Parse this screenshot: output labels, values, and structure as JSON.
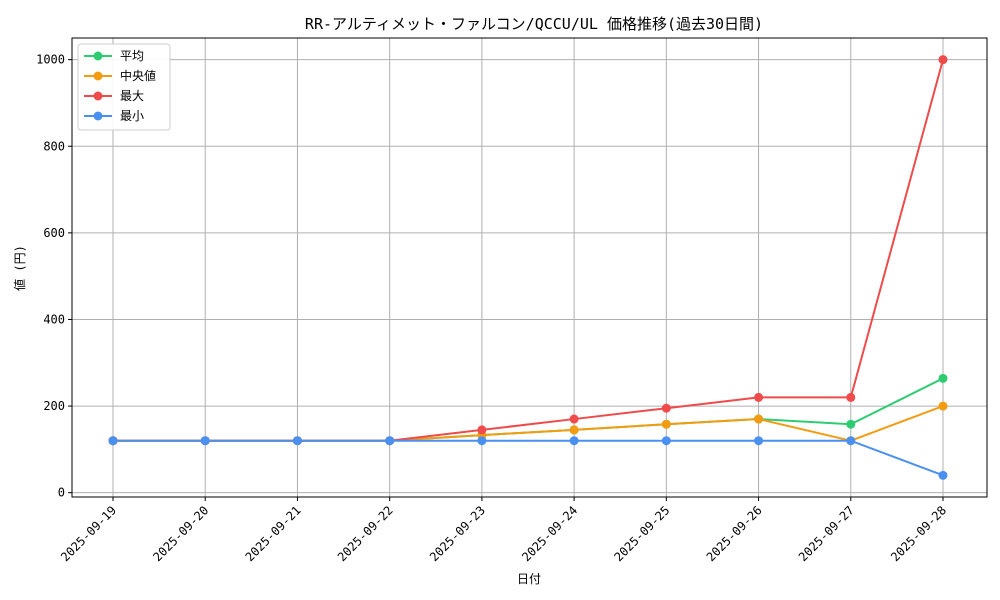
{
  "chart_data": {
    "type": "line",
    "title": "RR-アルティメット・ファルコン/QCCU/UL 価格推移(過去30日間)",
    "xlabel": "日付",
    "ylabel": "値 (円)",
    "ylim": [
      -10,
      1050
    ],
    "yticks": [
      0,
      200,
      400,
      600,
      800,
      1000
    ],
    "grid": true,
    "legend_position": "top-left",
    "categories": [
      "2025-09-19",
      "2025-09-20",
      "2025-09-21",
      "2025-09-22",
      "2025-09-23",
      "2025-09-24",
      "2025-09-25",
      "2025-09-26",
      "2025-09-27",
      "2025-09-28"
    ],
    "series": [
      {
        "name": "平均",
        "color": "#2ecc71",
        "values": [
          120,
          120,
          120,
          120,
          133,
          145,
          158,
          170,
          158,
          264
        ]
      },
      {
        "name": "中央値",
        "color": "#f39c12",
        "values": [
          120,
          120,
          120,
          120,
          133,
          145,
          158,
          170,
          120,
          200
        ]
      },
      {
        "name": "最大",
        "color": "#ef4b4b",
        "values": [
          120,
          120,
          120,
          120,
          145,
          170,
          195,
          220,
          220,
          1000
        ]
      },
      {
        "name": "最小",
        "color": "#4a90f0",
        "values": [
          120,
          120,
          120,
          120,
          120,
          120,
          120,
          120,
          120,
          40
        ]
      }
    ]
  }
}
